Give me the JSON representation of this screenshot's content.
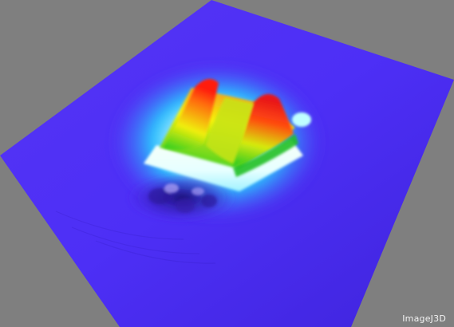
{
  "viewer": {
    "watermark_label": "ImageJ3D",
    "background_color": "#7f7f7f",
    "surface_base_color": "#4a2cf0",
    "colormap": [
      "#4a2cf0",
      "#1ee6ff",
      "#ffffff",
      "#22d022",
      "#f6f20a",
      "#ff2a10"
    ],
    "render_type": "3D surface plot"
  }
}
